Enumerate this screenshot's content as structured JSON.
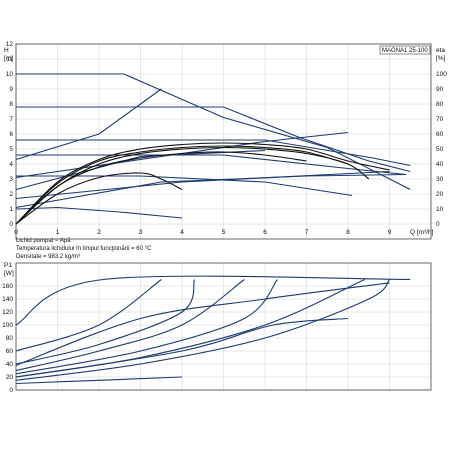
{
  "chart_data": [
    {
      "type": "line",
      "model": "MAGNA1 25-100",
      "ylabel_left": "H",
      "ylabel_left_unit": "[m]",
      "ylabel_right": "eta",
      "ylabel_right_unit": "[%]",
      "xlabel": "Q [m³/h]",
      "xlim": [
        0,
        10
      ],
      "ylim_left": [
        0,
        12
      ],
      "ylim_right": [
        0,
        120
      ],
      "x_ticks": [
        "0",
        "1",
        "2",
        "3",
        "4",
        "5",
        "6",
        "7",
        "8",
        "9"
      ],
      "y_ticks_left": [
        "0",
        "1",
        "2",
        "3",
        "4",
        "5",
        "6",
        "7",
        "8",
        "9",
        "10",
        "11",
        "12"
      ],
      "y_ticks_right": [
        "0",
        "10",
        "20",
        "30",
        "40",
        "50",
        "60",
        "70",
        "80",
        "90",
        "100"
      ],
      "notes": [
        "Lichid pompat = Apă",
        "Temperatura lichidului în timpul funcţionării = 60 °C",
        "Densitate = 983.2 kg/m³"
      ],
      "head_series": [
        {
          "values": [
            [
              0,
              10
            ],
            [
              2.6,
              10
            ],
            [
              5,
              7.1
            ],
            [
              7.5,
              5.1
            ],
            [
              9.5,
              2.3
            ]
          ]
        },
        {
          "values": [
            [
              0,
              7.8
            ],
            [
              5,
              7.8
            ],
            [
              6.8,
              5.8
            ],
            [
              8.5,
              4.2
            ],
            [
              9.5,
              3.5
            ]
          ]
        },
        {
          "values": [
            [
              0,
              5.6
            ],
            [
              6,
              5.6
            ],
            [
              8.6,
              4.4
            ],
            [
              9.5,
              3.9
            ]
          ]
        },
        {
          "values": [
            [
              0,
              4.6
            ],
            [
              5,
              4.6
            ],
            [
              8,
              3.7
            ],
            [
              9.4,
              3.3
            ]
          ]
        },
        {
          "values": [
            [
              0,
              3.2
            ],
            [
              3,
              3.2
            ],
            [
              6,
              2.8
            ],
            [
              8.1,
              1.9
            ]
          ]
        },
        {
          "values": [
            [
              0,
              1.0
            ],
            [
              1,
              1.1
            ],
            [
              2.5,
              0.8
            ],
            [
              4,
              0.4
            ]
          ]
        },
        {
          "values": [
            [
              0,
              4.3
            ],
            [
              2,
              6
            ],
            [
              3.5,
              9
            ]
          ]
        },
        {
          "values": [
            [
              0,
              3.1
            ],
            [
              3,
              4.3
            ],
            [
              6,
              5.5
            ],
            [
              8,
              6.1
            ]
          ]
        },
        {
          "values": [
            [
              0,
              2.3
            ],
            [
              3,
              4.5
            ],
            [
              6,
              4.9
            ]
          ]
        },
        {
          "values": [
            [
              0,
              1.7
            ],
            [
              4,
              2.8
            ],
            [
              9,
              3.5
            ]
          ]
        },
        {
          "values": [
            [
              0,
              1.1
            ],
            [
              3.5,
              2.8
            ],
            [
              7,
              3.2
            ],
            [
              9.4,
              3.3
            ]
          ]
        }
      ],
      "efficiency_series": [
        {
          "values": [
            [
              0,
              0
            ],
            [
              1,
              25
            ],
            [
              2,
              40
            ],
            [
              3,
              47
            ],
            [
              4,
              50
            ],
            [
              5,
              51
            ],
            [
              6,
              50
            ],
            [
              7,
              47
            ],
            [
              8,
              40
            ],
            [
              8.5,
              30
            ]
          ]
        },
        {
          "values": [
            [
              0,
              0
            ],
            [
              1,
              28
            ],
            [
              2,
              43
            ],
            [
              3,
              50
            ],
            [
              4,
              53
            ],
            [
              5,
              54
            ],
            [
              6,
              53
            ],
            [
              7,
              50
            ],
            [
              8,
              42
            ],
            [
              9,
              36
            ]
          ]
        },
        {
          "values": [
            [
              0,
              0
            ],
            [
              1,
              27
            ],
            [
              2,
              42
            ],
            [
              3,
              48
            ],
            [
              4,
              51
            ],
            [
              5,
              52
            ],
            [
              6,
              51
            ],
            [
              7,
              48
            ],
            [
              8,
              40
            ]
          ]
        },
        {
          "values": [
            [
              0,
              0
            ],
            [
              1,
              25
            ],
            [
              2,
              38
            ],
            [
              3,
              44
            ],
            [
              4,
              47
            ],
            [
              5,
              48
            ],
            [
              6,
              46
            ],
            [
              7,
              42
            ]
          ]
        },
        {
          "values": [
            [
              0,
              0
            ],
            [
              1,
              20
            ],
            [
              2,
              31
            ],
            [
              3,
              34
            ],
            [
              3.5,
              30
            ],
            [
              4,
              23
            ]
          ]
        }
      ]
    },
    {
      "type": "line",
      "ylabel": "P1",
      "ylabel_unit": "[W]",
      "xlim": [
        0,
        10
      ],
      "ylim": [
        0,
        180
      ],
      "y_ticks": [
        "0",
        "20",
        "40",
        "60",
        "80",
        "100",
        "120",
        "140",
        "160"
      ],
      "series": [
        {
          "values": [
            [
              0,
              100
            ],
            [
              2.1,
              170
            ],
            [
              9.5,
              170
            ]
          ]
        },
        {
          "values": [
            [
              0,
              60
            ],
            [
              2,
              100
            ],
            [
              3.5,
              170
            ]
          ]
        },
        {
          "values": [
            [
              0,
              40
            ],
            [
              2,
              70
            ],
            [
              4,
              120
            ],
            [
              4.3,
              170
            ]
          ]
        },
        {
          "values": [
            [
              0,
              30
            ],
            [
              2,
              60
            ],
            [
              4,
              100
            ],
            [
              5.5,
              170
            ]
          ]
        },
        {
          "values": [
            [
              0,
              25
            ],
            [
              3,
              60
            ],
            [
              5.5,
              110
            ],
            [
              6.3,
              170
            ]
          ]
        },
        {
          "values": [
            [
              0,
              20
            ],
            [
              3,
              50
            ],
            [
              6,
              100
            ],
            [
              8.4,
              170
            ]
          ]
        },
        {
          "values": [
            [
              0,
              15
            ],
            [
              3,
              40
            ],
            [
              6,
              80
            ],
            [
              8.5,
              140
            ],
            [
              9,
              170
            ]
          ]
        },
        {
          "values": [
            [
              0,
              20
            ],
            [
              4,
              60
            ],
            [
              6.2,
              100
            ],
            [
              8,
              110
            ]
          ]
        },
        {
          "values": [
            [
              0,
              10
            ],
            [
              2,
              15
            ],
            [
              4,
              20
            ]
          ]
        },
        {
          "values": [
            [
              0,
              38
            ],
            [
              3,
              110
            ],
            [
              6,
              140
            ],
            [
              9,
              165
            ]
          ]
        }
      ]
    }
  ]
}
